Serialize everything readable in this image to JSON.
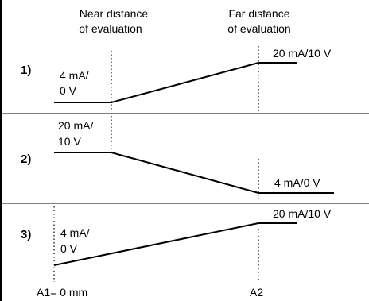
{
  "header": {
    "near": [
      "Near distance",
      "of evaluation"
    ],
    "far": [
      "Far distance",
      "of evaluation"
    ]
  },
  "panels": [
    {
      "number": "1)",
      "low_label": [
        "4 mA/",
        "0 V"
      ],
      "high_label": [
        "20 mA/10 V"
      ]
    },
    {
      "number": "2)",
      "high_label": [
        "20 mA/",
        "10 V"
      ],
      "low_label": [
        "4 mA/0 V"
      ]
    },
    {
      "number": "3)",
      "low_label": [
        "4 mA/",
        "0 V"
      ],
      "high_label": [
        "20 mA/10 V"
      ]
    }
  ],
  "footer": {
    "a1": "A1= 0 mm",
    "a2": "A2"
  },
  "colors": {
    "line": "#000000",
    "background": "#ffffff"
  }
}
